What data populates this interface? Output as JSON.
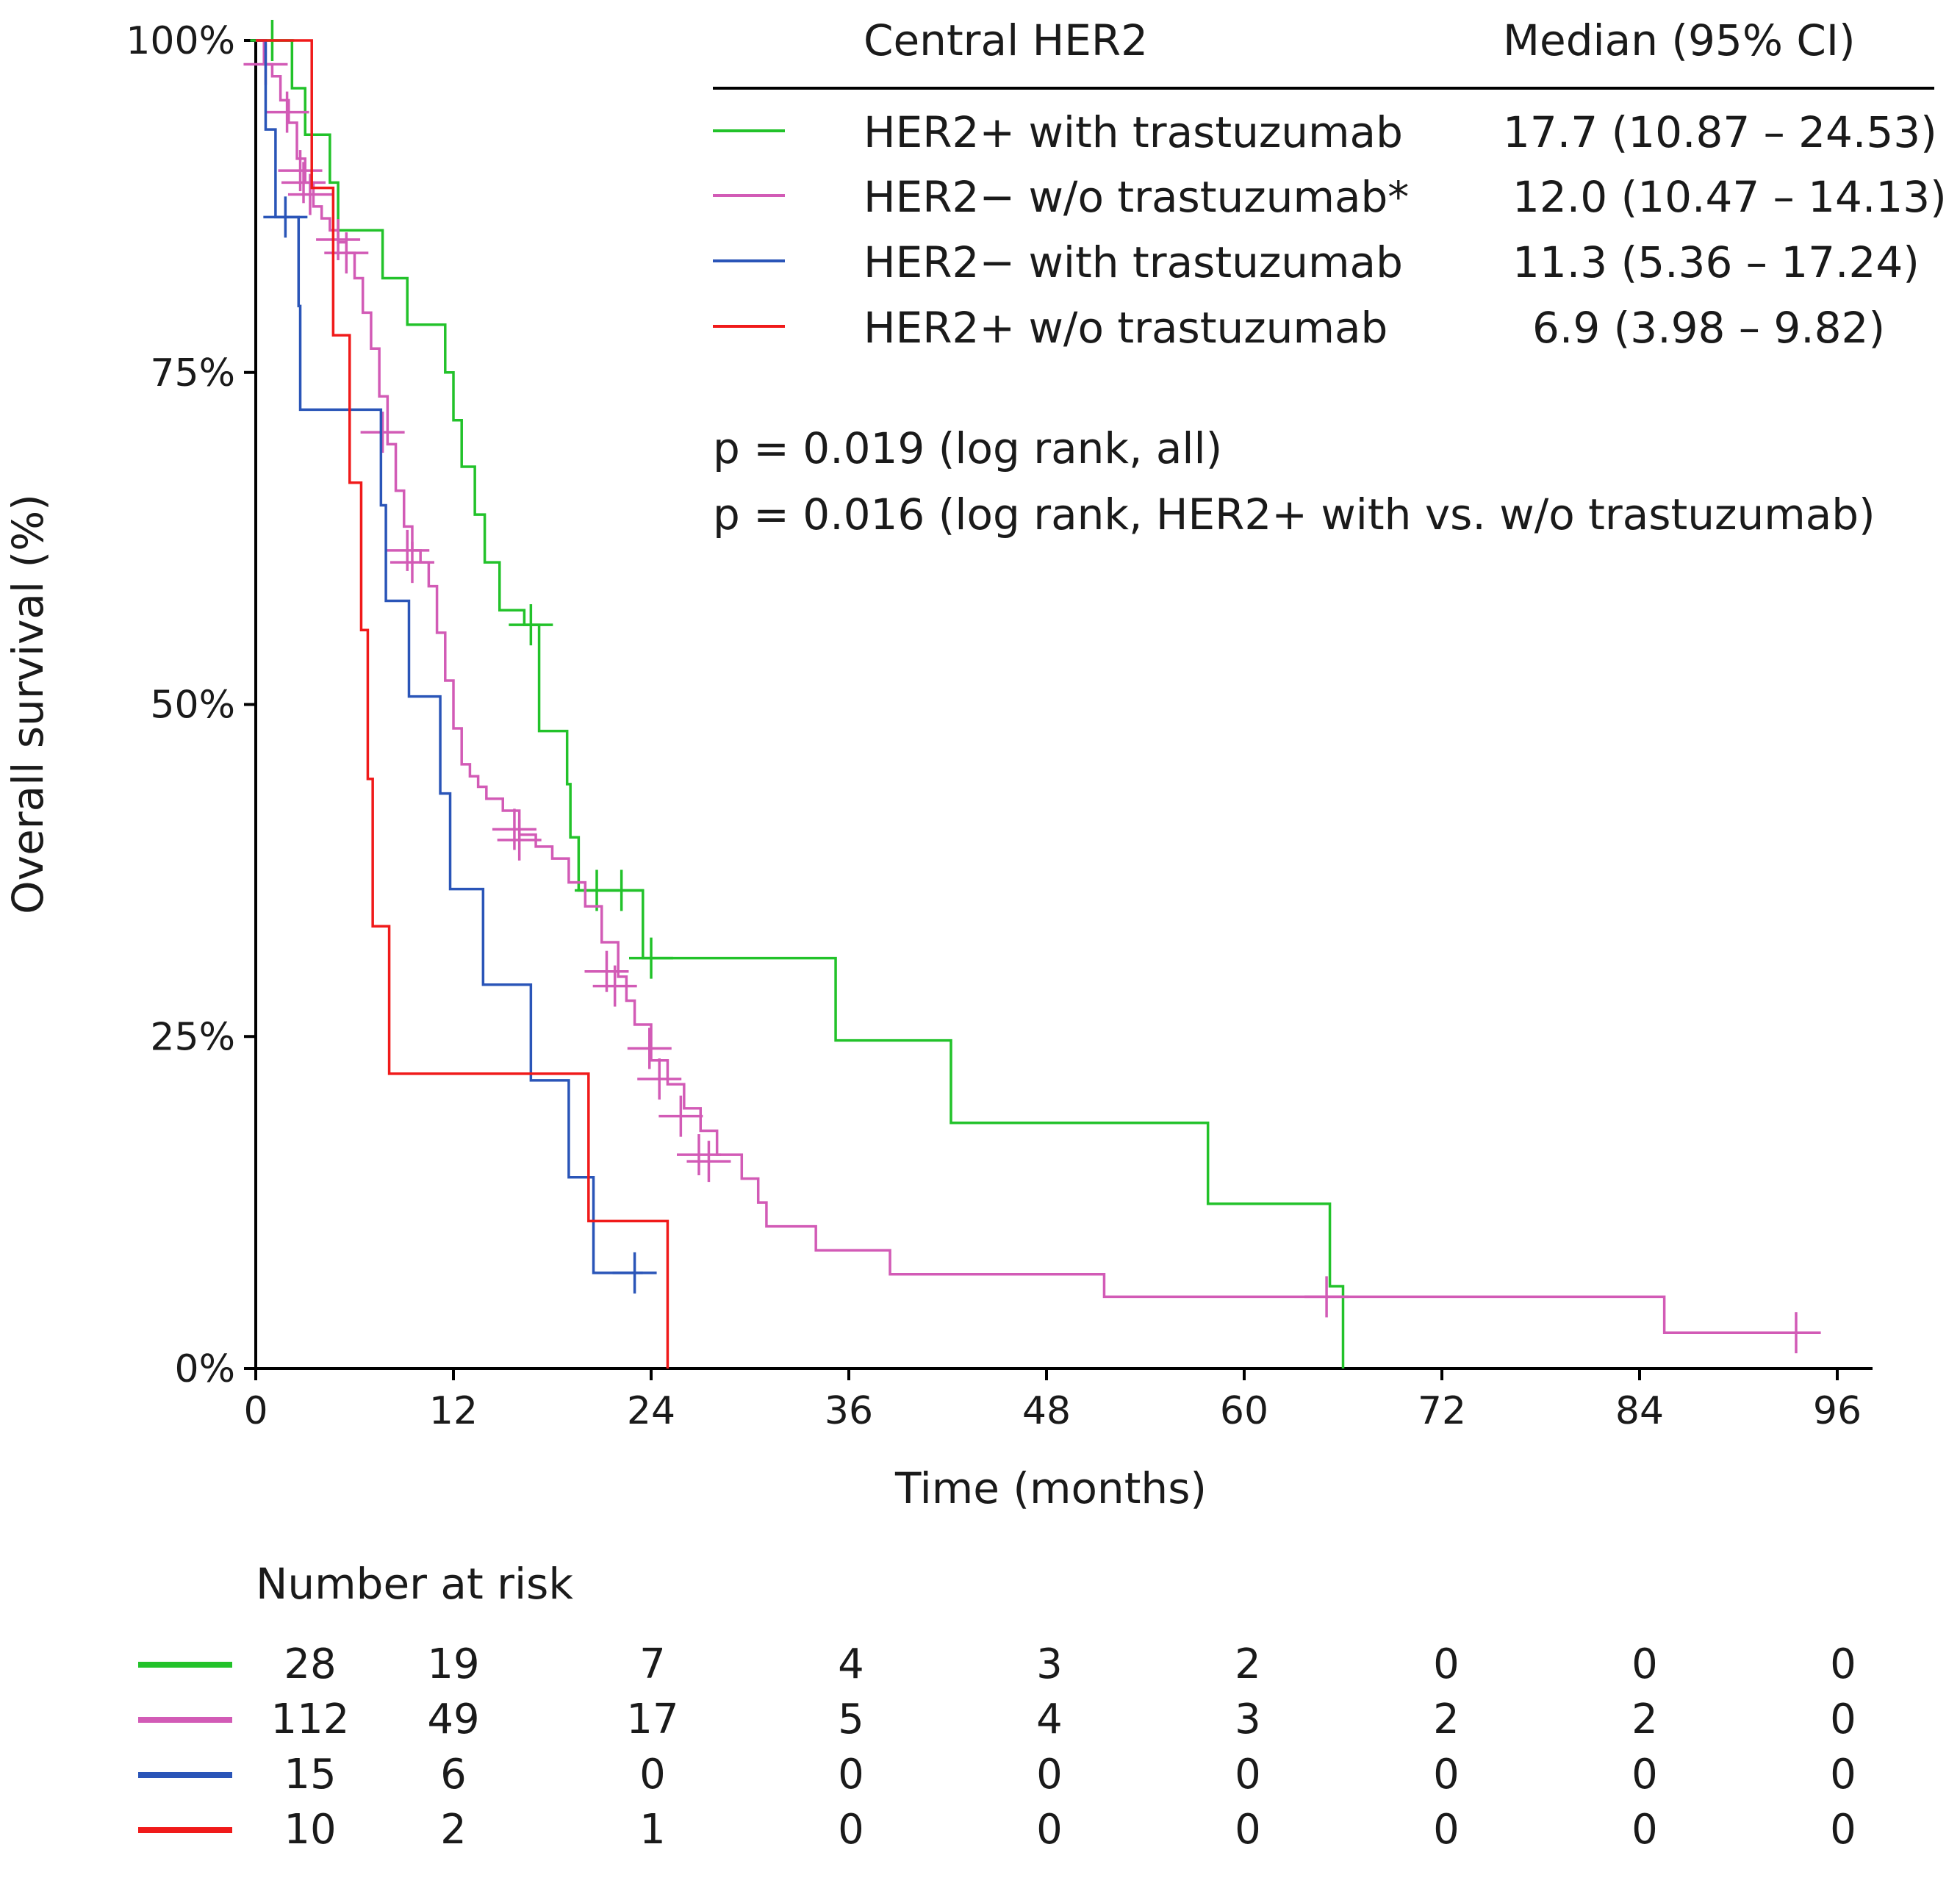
{
  "chart_data": {
    "type": "line",
    "subtype": "kaplan-meier",
    "ylabel": "Overall survival (%)",
    "xlabel": "Time (months)",
    "xlim": [
      0,
      98
    ],
    "ylim": [
      0,
      100
    ],
    "x_ticks": [
      0,
      12,
      24,
      36,
      48,
      60,
      72,
      84,
      96
    ],
    "y_ticks": [
      0,
      25,
      50,
      75,
      100
    ],
    "y_tick_labels": [
      "0%",
      "25%",
      "50%",
      "75%",
      "100%"
    ],
    "legend": {
      "header_group": "Central HER2",
      "header_median": "Median (95% CI)",
      "placement": "top-right"
    },
    "annotations": [
      "p = 0.019 (log rank, all)",
      "p = 0.016 (log rank, HER2+ with vs. w/o trastuzumab)"
    ],
    "risk_table": {
      "title": "Number at risk",
      "times": [
        0,
        12,
        24,
        36,
        48,
        60,
        72,
        84,
        96
      ]
    },
    "series": [
      {
        "name": "HER2+ with trastuzumab",
        "median": "17.7 (10.87 – 24.53)",
        "color": "#22c22a",
        "at_risk": [
          "28",
          "19",
          "7",
          "4",
          "3",
          "2",
          "0",
          "0",
          "0"
        ],
        "steps": [
          [
            0,
            100
          ],
          [
            2.2,
            96.4
          ],
          [
            3.0,
            92.9
          ],
          [
            4.5,
            89.3
          ],
          [
            5.0,
            85.7
          ],
          [
            6.5,
            85.7
          ],
          [
            7.7,
            82.1
          ],
          [
            7.7,
            82.1
          ],
          [
            9.2,
            78.6
          ],
          [
            10.5,
            78.6
          ],
          [
            11.5,
            75.0
          ],
          [
            12.0,
            71.4
          ],
          [
            12.5,
            67.9
          ],
          [
            13.3,
            64.3
          ],
          [
            13.9,
            60.7
          ],
          [
            14.8,
            57.1
          ],
          [
            14.8,
            57.1
          ],
          [
            16.3,
            56.0
          ],
          [
            17.2,
            48.0
          ],
          [
            18.9,
            44.0
          ],
          [
            19.1,
            40.0
          ],
          [
            19.6,
            36.0
          ],
          [
            22.2,
            36.0
          ],
          [
            23.5,
            30.9
          ],
          [
            35.0,
            30.9
          ],
          [
            35.2,
            24.7
          ],
          [
            42.0,
            24.7
          ],
          [
            42.2,
            18.5
          ],
          [
            57.6,
            18.5
          ],
          [
            57.8,
            12.4
          ],
          [
            65.0,
            12.4
          ],
          [
            65.2,
            6.2
          ],
          [
            66.0,
            6.2
          ],
          [
            66.0,
            0
          ]
        ],
        "censored": [
          [
            1.0,
            100
          ],
          [
            16.7,
            56.0
          ],
          [
            20.7,
            36.0
          ],
          [
            22.2,
            36.0
          ],
          [
            24.0,
            30.9
          ]
        ]
      },
      {
        "name": "HER2− w/o trastuzumab*",
        "median": "12.0 (10.47 – 14.13)",
        "color": "#d25bb6",
        "at_risk": [
          "112",
          "49",
          "17",
          "5",
          "4",
          "3",
          "2",
          "2",
          "0"
        ],
        "steps": [
          [
            0,
            100
          ],
          [
            0.5,
            98.2
          ],
          [
            1.0,
            97.3
          ],
          [
            1.5,
            95.5
          ],
          [
            2.0,
            93.8
          ],
          [
            2.5,
            91.1
          ],
          [
            3.0,
            89.3
          ],
          [
            3.5,
            87.5
          ],
          [
            4.0,
            86.6
          ],
          [
            4.5,
            85.7
          ],
          [
            5.0,
            84.8
          ],
          [
            5.5,
            84.0
          ],
          [
            6.0,
            82.1
          ],
          [
            6.5,
            79.5
          ],
          [
            7.0,
            76.8
          ],
          [
            7.5,
            73.2
          ],
          [
            8.0,
            69.6
          ],
          [
            8.5,
            66.1
          ],
          [
            9.0,
            63.4
          ],
          [
            9.5,
            61.6
          ],
          [
            10.0,
            60.7
          ],
          [
            10.5,
            58.9
          ],
          [
            11.0,
            55.4
          ],
          [
            11.5,
            51.8
          ],
          [
            12.0,
            48.2
          ],
          [
            12.5,
            45.5
          ],
          [
            13.0,
            44.6
          ],
          [
            13.5,
            43.8
          ],
          [
            14.0,
            42.9
          ],
          [
            15.0,
            42.0
          ],
          [
            16.0,
            40.2
          ],
          [
            17.0,
            39.3
          ],
          [
            18.0,
            38.4
          ],
          [
            19.0,
            36.6
          ],
          [
            20.0,
            34.8
          ],
          [
            21.0,
            32.1
          ],
          [
            22.0,
            29.5
          ],
          [
            22.5,
            27.7
          ],
          [
            23.0,
            25.9
          ],
          [
            24.0,
            23.2
          ],
          [
            25.0,
            21.4
          ],
          [
            26.0,
            19.6
          ],
          [
            27.0,
            17.9
          ],
          [
            28.0,
            16.1
          ],
          [
            29.5,
            14.3
          ],
          [
            30.5,
            12.5
          ],
          [
            31.0,
            10.7
          ],
          [
            34.0,
            8.9
          ],
          [
            38.5,
            7.1
          ],
          [
            51.5,
            5.4
          ],
          [
            85.5,
            5.4
          ],
          [
            85.5,
            2.7
          ],
          [
            95.0,
            2.7
          ]
        ],
        "censored": [
          [
            0.6,
            98.2
          ],
          [
            1.9,
            94.6
          ],
          [
            2.7,
            90.2
          ],
          [
            2.9,
            89.3
          ],
          [
            3.3,
            88.4
          ],
          [
            5.0,
            85.0
          ],
          [
            5.5,
            84.0
          ],
          [
            7.7,
            70.5
          ],
          [
            9.2,
            61.6
          ],
          [
            9.5,
            60.7
          ],
          [
            15.7,
            40.6
          ],
          [
            16.0,
            39.8
          ],
          [
            21.3,
            29.9
          ],
          [
            21.8,
            28.8
          ],
          [
            23.9,
            24.1
          ],
          [
            24.5,
            21.8
          ],
          [
            25.8,
            19.0
          ],
          [
            26.9,
            16.1
          ],
          [
            27.5,
            15.6
          ],
          [
            65.0,
            5.4
          ],
          [
            93.5,
            2.7
          ]
        ]
      },
      {
        "name": "HER2− with trastuzumab",
        "median": "11.3 (5.36 – 17.24)",
        "color": "#2a55b8",
        "at_risk": [
          "15",
          "6",
          "0",
          "0",
          "0",
          "0",
          "0",
          "0",
          "0"
        ],
        "steps": [
          [
            0,
            100
          ],
          [
            0.6,
            93.3
          ],
          [
            1.2,
            86.7
          ],
          [
            2.5,
            86.7
          ],
          [
            2.6,
            80.0
          ],
          [
            2.7,
            72.2
          ],
          [
            7.4,
            72.2
          ],
          [
            7.6,
            65.0
          ],
          [
            7.9,
            57.8
          ],
          [
            9.2,
            57.8
          ],
          [
            9.3,
            50.6
          ],
          [
            11.0,
            50.6
          ],
          [
            11.2,
            43.3
          ],
          [
            11.8,
            36.1
          ],
          [
            13.5,
            36.1
          ],
          [
            13.8,
            28.9
          ],
          [
            16.5,
            28.9
          ],
          [
            16.7,
            21.7
          ],
          [
            18.9,
            21.7
          ],
          [
            19.0,
            14.4
          ],
          [
            20.3,
            14.4
          ],
          [
            20.5,
            7.2
          ],
          [
            23.5,
            7.2
          ]
        ],
        "censored": [
          [
            1.8,
            86.7
          ],
          [
            23.0,
            7.2
          ]
        ]
      },
      {
        "name": "HER2+ w/o trastuzumab",
        "median": "6.9 (3.98 – 9.82)",
        "color": "#f01a1a",
        "at_risk": [
          "10",
          "2",
          "1",
          "0",
          "0",
          "0",
          "0",
          "0",
          "0"
        ],
        "steps": [
          [
            0,
            100
          ],
          [
            3.3,
            100
          ],
          [
            3.4,
            88.9
          ],
          [
            4.6,
            88.9
          ],
          [
            4.7,
            77.8
          ],
          [
            5.6,
            77.8
          ],
          [
            5.7,
            66.7
          ],
          [
            6.4,
            55.6
          ],
          [
            6.8,
            44.4
          ],
          [
            7.1,
            33.3
          ],
          [
            8.1,
            22.2
          ],
          [
            20.1,
            22.2
          ],
          [
            20.2,
            11.1
          ],
          [
            25.0,
            11.1
          ],
          [
            25.0,
            0
          ]
        ],
        "censored": []
      }
    ]
  }
}
